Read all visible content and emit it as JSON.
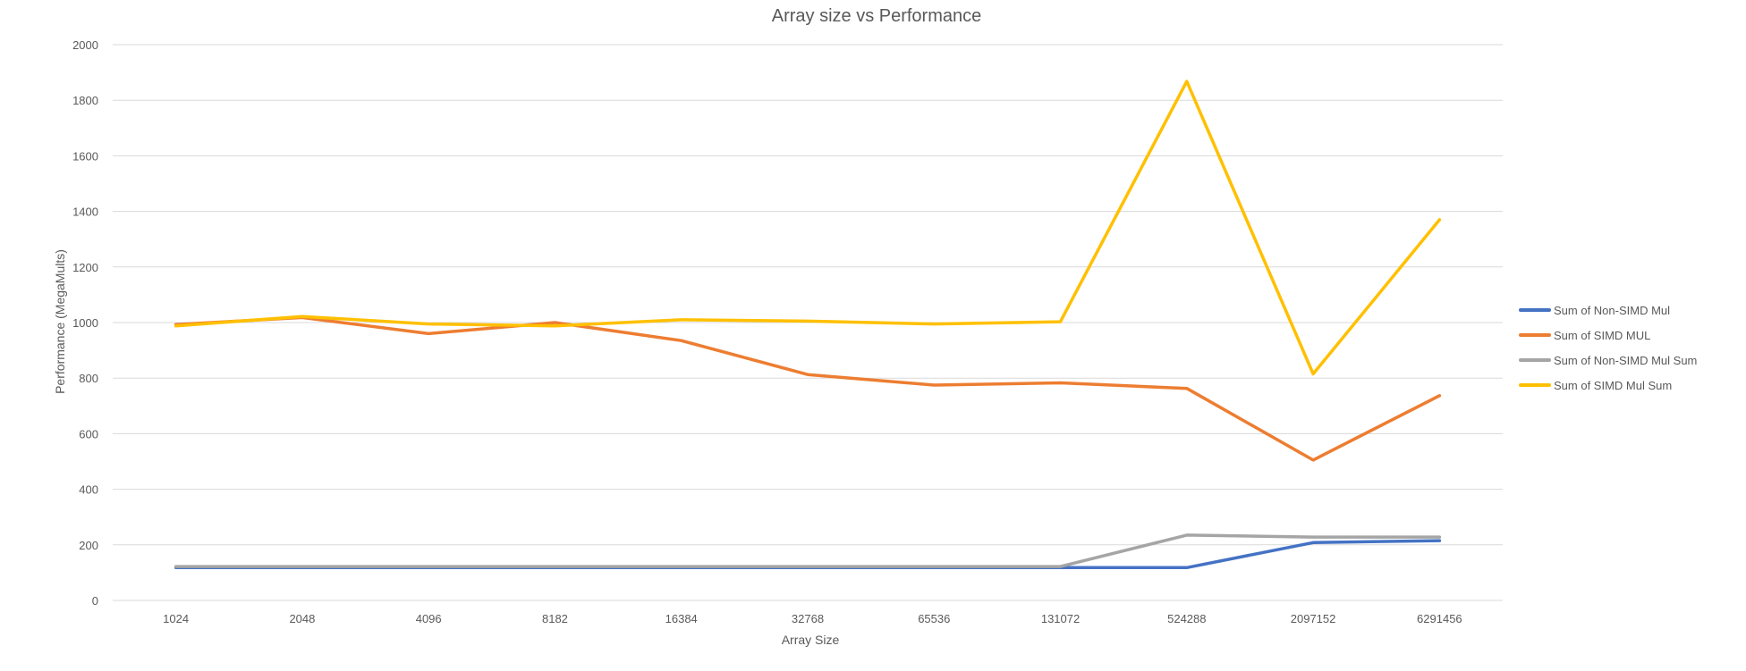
{
  "chart_data": {
    "type": "line",
    "title": "Array size vs Performance",
    "xlabel": "Array Size",
    "ylabel": "Performance (MegaMults)",
    "ylim": [
      0,
      2000
    ],
    "yticks": [
      0,
      200,
      400,
      600,
      800,
      1000,
      1200,
      1400,
      1600,
      1800,
      2000
    ],
    "grid": true,
    "legend_position": "right",
    "categories": [
      "1024",
      "2048",
      "4096",
      "8182",
      "16384",
      "32768",
      "65536",
      "131072",
      "524288",
      "2097152",
      "6291456"
    ],
    "series": [
      {
        "name": "Sum of  Non-SIMD Mul",
        "color": "#4472c4",
        "values": [
          118,
          118,
          118,
          118,
          118,
          118,
          118,
          118,
          118,
          208,
          215
        ]
      },
      {
        "name": "Sum of SIMD MUL",
        "color": "#ed7d31",
        "values": [
          993,
          1018,
          960,
          1000,
          935,
          813,
          775,
          783,
          763,
          505,
          737
        ]
      },
      {
        "name": "Sum of  Non-SIMD Mul Sum",
        "color": "#a5a5a5",
        "values": [
          122,
          122,
          122,
          122,
          122,
          122,
          122,
          122,
          235,
          228,
          228
        ]
      },
      {
        "name": "Sum of  SIMD Mul Sum",
        "color": "#ffc000",
        "values": [
          988,
          1022,
          995,
          988,
          1010,
          1005,
          995,
          1003,
          1868,
          815,
          1370
        ]
      }
    ]
  }
}
